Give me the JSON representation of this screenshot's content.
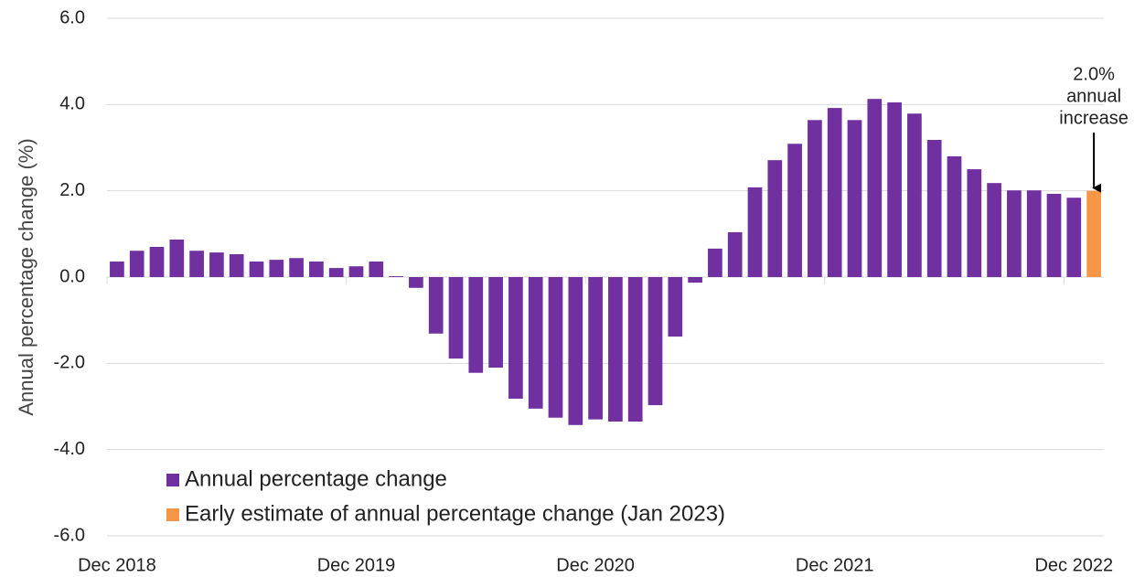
{
  "chart_data": {
    "type": "bar",
    "y_label": "Annual percentage change (%)",
    "categories": [
      "Dec 2018",
      null,
      null,
      null,
      null,
      null,
      null,
      null,
      null,
      null,
      null,
      null,
      "Dec 2019",
      null,
      null,
      null,
      null,
      null,
      null,
      null,
      null,
      null,
      null,
      null,
      "Dec 2020",
      null,
      null,
      null,
      null,
      null,
      null,
      null,
      null,
      null,
      null,
      null,
      "Dec 2021",
      null,
      null,
      null,
      null,
      null,
      null,
      null,
      null,
      null,
      null,
      null,
      "Dec 2022",
      null
    ],
    "series": [
      {
        "name": "Annual percentage change",
        "color": "#7030a0",
        "values": [
          0.36,
          0.61,
          0.7,
          0.87,
          0.61,
          0.57,
          0.53,
          0.36,
          0.4,
          0.44,
          0.36,
          0.21,
          0.25,
          0.36,
          0.02,
          -0.25,
          -1.31,
          -1.89,
          -2.22,
          -2.1,
          -2.82,
          -3.05,
          -3.26,
          -3.43,
          -3.3,
          -3.35,
          -3.35,
          -2.97,
          -1.38,
          -0.13,
          0.66,
          1.04,
          2.08,
          2.71,
          3.09,
          3.64,
          3.92,
          3.64,
          4.13,
          4.05,
          3.79,
          3.18,
          2.8,
          2.5,
          2.18,
          2.01,
          2.01,
          1.93,
          1.84,
          null
        ]
      },
      {
        "name": "Early estimate of annual percentage change (Jan 2023)",
        "color": "#f79646",
        "values": [
          null,
          null,
          null,
          null,
          null,
          null,
          null,
          null,
          null,
          null,
          null,
          null,
          null,
          null,
          null,
          null,
          null,
          null,
          null,
          null,
          null,
          null,
          null,
          null,
          null,
          null,
          null,
          null,
          null,
          null,
          null,
          null,
          null,
          null,
          null,
          null,
          null,
          null,
          null,
          null,
          null,
          null,
          null,
          null,
          null,
          null,
          null,
          null,
          null,
          2.0
        ]
      }
    ],
    "annotation": [
      "2.0%",
      "annual",
      "increase"
    ],
    "ylim": [
      -6,
      6
    ],
    "yticks": [
      {
        "value": -6,
        "label": "-6.0"
      },
      {
        "value": -4,
        "label": "-4.0"
      },
      {
        "value": -2,
        "label": "-2.0"
      },
      {
        "value": 0,
        "label": "0.0"
      },
      {
        "value": 2,
        "label": "2.0"
      },
      {
        "value": 4,
        "label": "4.0"
      },
      {
        "value": 6,
        "label": "6.0"
      }
    ],
    "grid": true
  }
}
